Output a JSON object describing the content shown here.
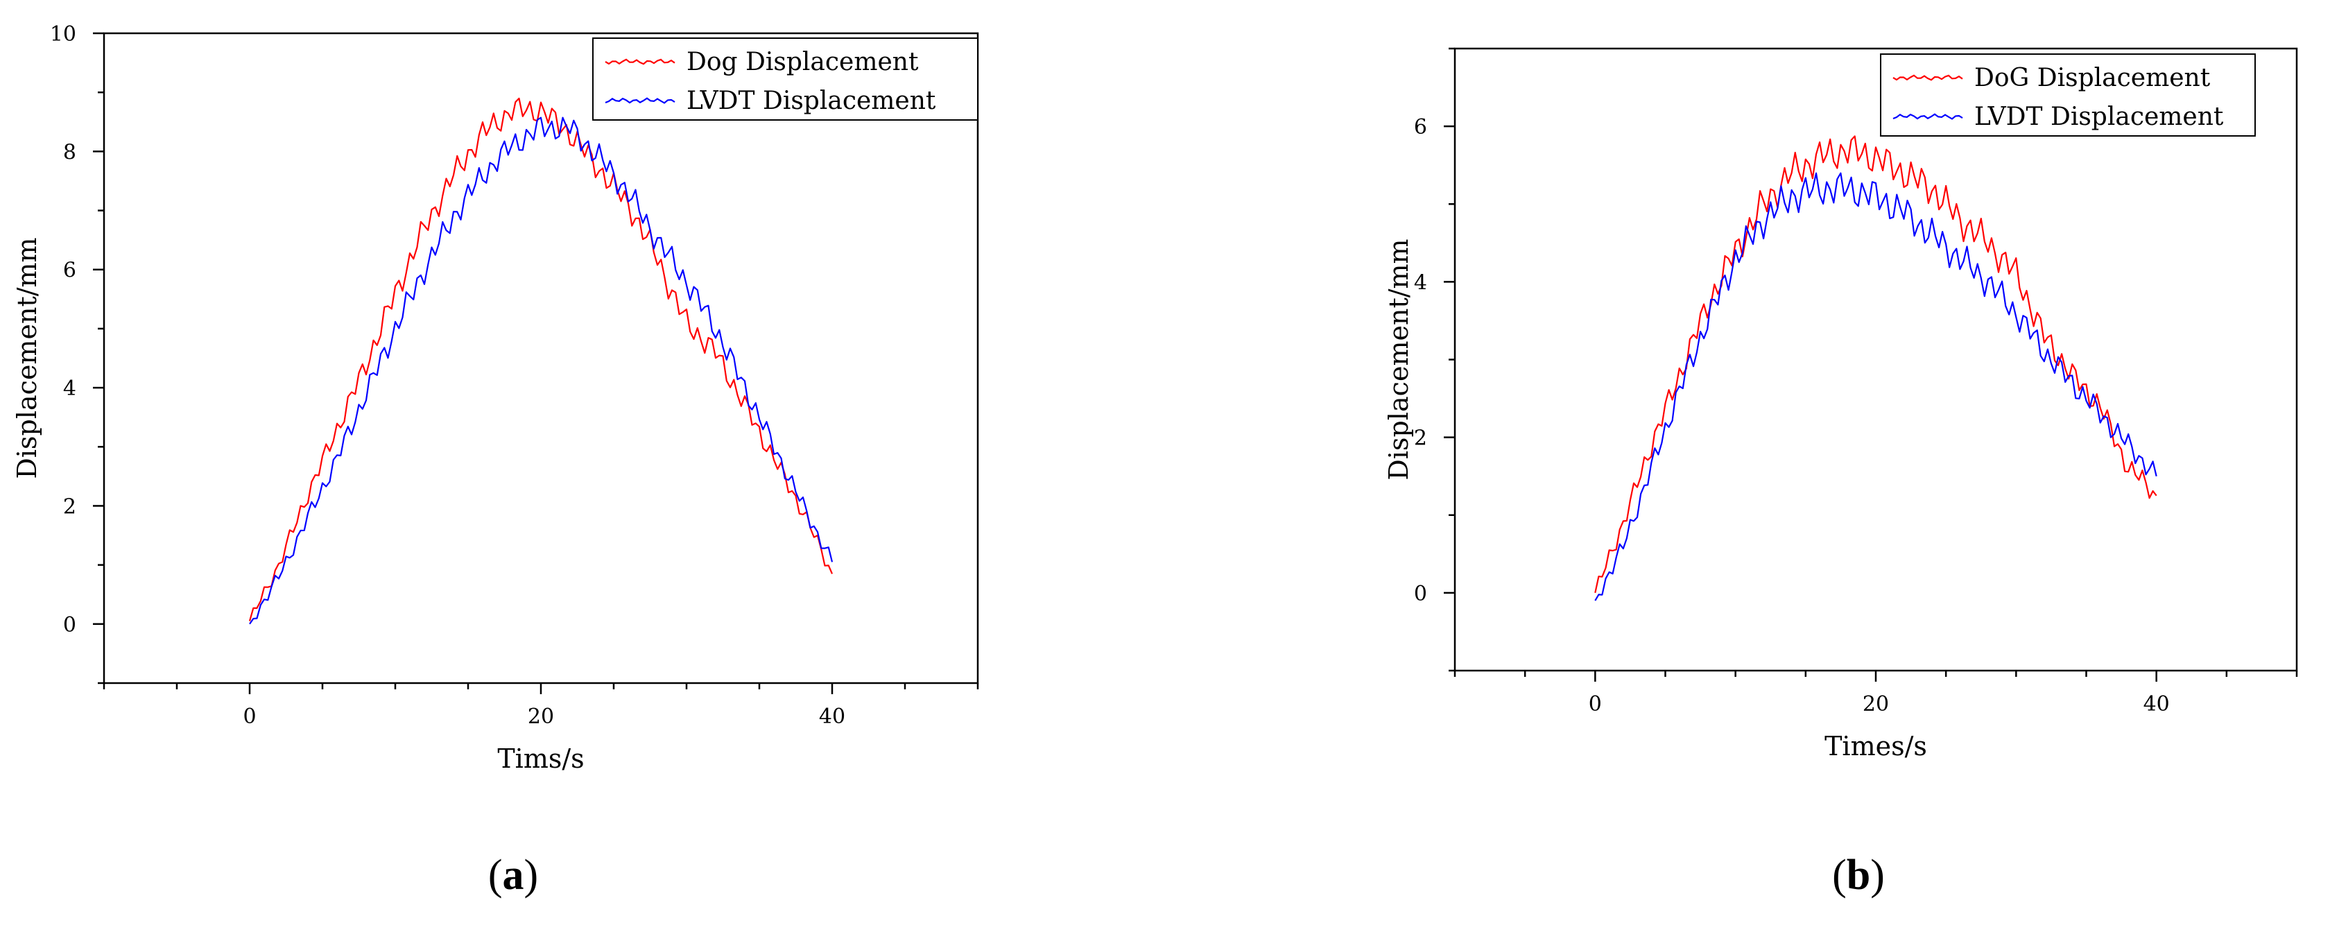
{
  "chart_data": [
    {
      "type": "line",
      "panel_label": "a",
      "xlabel": "Tims/s",
      "ylabel": "Displacement/mm",
      "xlim": [
        -10,
        50
      ],
      "ylim": [
        -1,
        10
      ],
      "xticks": [
        0,
        20,
        40
      ],
      "yticks": [
        0,
        2,
        4,
        6,
        8,
        10
      ],
      "grid": false,
      "legend_position": "top-right",
      "series": [
        {
          "name": "Dog Displacement",
          "color": "#ff0000",
          "x": [
            0,
            2,
            4,
            6,
            8,
            10,
            12,
            14,
            16,
            18,
            20,
            22,
            24,
            26,
            28,
            29,
            30,
            32,
            34,
            36,
            38,
            40
          ],
          "y": [
            0.05,
            1.0,
            2.2,
            3.3,
            4.4,
            5.6,
            6.7,
            7.6,
            8.3,
            8.7,
            8.7,
            8.3,
            7.7,
            7.1,
            6.2,
            5.6,
            5.1,
            4.6,
            3.7,
            2.8,
            1.9,
            0.85
          ]
        },
        {
          "name": "LVDT Displacement",
          "color": "#0000ff",
          "x": [
            0,
            2,
            4,
            6,
            8,
            10,
            12,
            14,
            16,
            18,
            20,
            22,
            24,
            26,
            28,
            30,
            32,
            34,
            36,
            38,
            40
          ],
          "y": [
            0.0,
            0.8,
            1.8,
            2.8,
            3.9,
            5.0,
            6.0,
            6.9,
            7.6,
            8.1,
            8.4,
            8.4,
            7.9,
            7.3,
            6.5,
            5.8,
            5.0,
            4.0,
            3.0,
            2.0,
            1.05
          ]
        }
      ]
    },
    {
      "type": "line",
      "panel_label": "b",
      "xlabel": "Times/s",
      "ylabel": "Displacement/mm",
      "xlim": [
        -10,
        50
      ],
      "ylim": [
        -1,
        7
      ],
      "xticks": [
        0,
        20,
        40
      ],
      "yticks": [
        0,
        2,
        4,
        6
      ],
      "grid": false,
      "legend_position": "top-right",
      "series": [
        {
          "name": "DoG Displacement",
          "color": "#ff0000",
          "x": [
            0,
            2,
            4,
            6,
            8,
            10,
            12,
            14,
            16,
            18,
            20,
            22,
            24,
            26,
            28,
            30,
            32,
            34,
            36,
            38,
            39,
            40
          ],
          "y": [
            0.0,
            0.9,
            1.9,
            2.8,
            3.7,
            4.4,
            5.0,
            5.4,
            5.6,
            5.7,
            5.6,
            5.4,
            5.2,
            4.8,
            4.5,
            4.1,
            3.3,
            2.8,
            2.4,
            1.6,
            1.45,
            1.25
          ]
        },
        {
          "name": "LVDT Displacement",
          "color": "#0000ff",
          "x": [
            0,
            2,
            4,
            6,
            8,
            10,
            12,
            14,
            16,
            18,
            20,
            22,
            24,
            26,
            28,
            30,
            32,
            34,
            36,
            38,
            40
          ],
          "y": [
            -0.1,
            0.6,
            1.6,
            2.6,
            3.5,
            4.3,
            4.8,
            5.1,
            5.2,
            5.2,
            5.1,
            4.9,
            4.6,
            4.3,
            4.0,
            3.6,
            3.1,
            2.7,
            2.3,
            1.9,
            1.5
          ]
        }
      ]
    }
  ]
}
